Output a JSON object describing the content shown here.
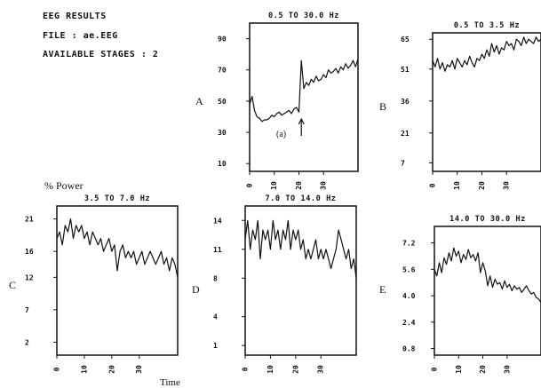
{
  "header": {
    "line1": "EEG RESULTS",
    "line2": "FILE : ae.EEG",
    "line3": "AVAILABLE STAGES : 2"
  },
  "power_label": "% Power",
  "time_label": "Time",
  "chart_data": [
    {
      "type": "line",
      "panel_label": "A",
      "title": "0.5 TO 30.0 Hz",
      "yticks": [
        "10",
        "30",
        "50",
        "70",
        "90"
      ],
      "ylim": [
        5,
        100
      ],
      "xticks": [
        "0",
        "10",
        "20",
        "30"
      ],
      "xlim": [
        0,
        44
      ],
      "annotations": [
        "(a)"
      ],
      "x": [
        0,
        1,
        2,
        3,
        4,
        5,
        6,
        7,
        8,
        9,
        10,
        11,
        12,
        13,
        14,
        15,
        16,
        17,
        18,
        19,
        20,
        21,
        22,
        23,
        24,
        25,
        26,
        27,
        28,
        29,
        30,
        31,
        32,
        33,
        34,
        35,
        36,
        37,
        38,
        39,
        40,
        41,
        42,
        43,
        44
      ],
      "values": [
        48,
        53,
        44,
        40,
        39,
        37,
        38,
        38,
        39,
        41,
        40,
        42,
        43,
        41,
        42,
        43,
        44,
        42,
        45,
        46,
        43,
        76,
        58,
        62,
        60,
        64,
        62,
        66,
        63,
        64,
        67,
        65,
        70,
        68,
        69,
        71,
        68,
        72,
        70,
        74,
        71,
        73,
        76,
        72,
        77
      ]
    },
    {
      "type": "line",
      "panel_label": "B",
      "title": "0.5 TO 3.5 Hz",
      "yticks": [
        "7",
        "21",
        "36",
        "51",
        "65"
      ],
      "ylim": [
        3,
        68
      ],
      "xticks": [
        "0",
        "10",
        "20",
        "30"
      ],
      "xlim": [
        0,
        44
      ],
      "x": [
        0,
        1,
        2,
        3,
        4,
        5,
        6,
        7,
        8,
        9,
        10,
        11,
        12,
        13,
        14,
        15,
        16,
        17,
        18,
        19,
        20,
        21,
        22,
        23,
        24,
        25,
        26,
        27,
        28,
        29,
        30,
        31,
        32,
        33,
        34,
        35,
        36,
        37,
        38,
        39,
        40,
        41,
        42,
        43,
        44
      ],
      "values": [
        55,
        52,
        56,
        51,
        54,
        50,
        53,
        52,
        55,
        51,
        56,
        54,
        52,
        55,
        53,
        57,
        54,
        52,
        56,
        55,
        58,
        56,
        60,
        57,
        63,
        59,
        62,
        58,
        61,
        60,
        64,
        62,
        63,
        60,
        65,
        64,
        62,
        66,
        63,
        65,
        64,
        63,
        66,
        64,
        65
      ]
    },
    {
      "type": "line",
      "panel_label": "C",
      "title": "3.5 TO 7.0 Hz",
      "yticks": [
        "2",
        "7",
        "12",
        "16",
        "21"
      ],
      "ylim": [
        0,
        23
      ],
      "xticks": [
        "0",
        "10",
        "20",
        "30"
      ],
      "xlim": [
        0,
        44
      ],
      "x": [
        0,
        1,
        2,
        3,
        4,
        5,
        6,
        7,
        8,
        9,
        10,
        11,
        12,
        13,
        14,
        15,
        16,
        17,
        18,
        19,
        20,
        21,
        22,
        23,
        24,
        25,
        26,
        27,
        28,
        29,
        30,
        31,
        32,
        33,
        34,
        35,
        36,
        37,
        38,
        39,
        40,
        41,
        42,
        43,
        44
      ],
      "values": [
        18,
        19,
        17,
        20,
        19,
        21,
        18,
        20,
        19,
        20,
        18,
        19,
        17,
        19,
        18,
        17,
        18,
        16,
        17,
        18,
        16,
        17,
        13,
        16,
        17,
        15,
        16,
        15,
        16,
        14,
        15,
        16,
        14,
        15,
        16,
        15,
        14,
        15,
        16,
        14,
        15,
        13,
        15,
        14,
        12
      ]
    },
    {
      "type": "line",
      "panel_label": "D",
      "title": "7.0 TO 14.0 Hz",
      "yticks": [
        "1",
        "4",
        "8",
        "11",
        "14"
      ],
      "ylim": [
        0,
        15.5
      ],
      "xticks": [
        "0",
        "10",
        "20",
        "30"
      ],
      "xlim": [
        0,
        44
      ],
      "x": [
        0,
        1,
        2,
        3,
        4,
        5,
        6,
        7,
        8,
        9,
        10,
        11,
        12,
        13,
        14,
        15,
        16,
        17,
        18,
        19,
        20,
        21,
        22,
        23,
        24,
        25,
        26,
        27,
        28,
        29,
        30,
        31,
        32,
        33,
        34,
        35,
        36,
        37,
        38,
        39,
        40,
        41,
        42,
        43,
        44
      ],
      "values": [
        12,
        14,
        11,
        13,
        12,
        14,
        10,
        13,
        12,
        13,
        11,
        14,
        12,
        13,
        11,
        13,
        12,
        14,
        11,
        13,
        12,
        13,
        11,
        12,
        10,
        11,
        10,
        11,
        12,
        10,
        11,
        10,
        11,
        10,
        9,
        10,
        11,
        13,
        12,
        11,
        10,
        11,
        9,
        10,
        8
      ]
    },
    {
      "type": "line",
      "panel_label": "E",
      "title": "14.0 TO 30.0 Hz",
      "yticks": [
        "0.8",
        "2.4",
        "4.0",
        "5.6",
        "7.2"
      ],
      "ylim": [
        0.4,
        8.2
      ],
      "xticks": [
        "0",
        "10",
        "20",
        "30"
      ],
      "xlim": [
        0,
        44
      ],
      "x": [
        0,
        1,
        2,
        3,
        4,
        5,
        6,
        7,
        8,
        9,
        10,
        11,
        12,
        13,
        14,
        15,
        16,
        17,
        18,
        19,
        20,
        21,
        22,
        23,
        24,
        25,
        26,
        27,
        28,
        29,
        30,
        31,
        32,
        33,
        34,
        35,
        36,
        37,
        38,
        39,
        40,
        41,
        42,
        43,
        44
      ],
      "values": [
        5.6,
        5.2,
        6.0,
        5.4,
        6.3,
        5.9,
        6.6,
        6.1,
        6.9,
        6.4,
        6.7,
        6.0,
        6.5,
        6.2,
        6.8,
        6.3,
        6.5,
        6.1,
        6.6,
        5.4,
        6.0,
        5.5,
        4.6,
        5.2,
        4.5,
        5.0,
        4.7,
        4.8,
        4.4,
        4.9,
        4.5,
        4.7,
        4.3,
        4.6,
        4.4,
        4.5,
        4.2,
        4.4,
        4.6,
        4.3,
        4.1,
        4.2,
        3.9,
        3.8,
        3.6
      ]
    }
  ]
}
